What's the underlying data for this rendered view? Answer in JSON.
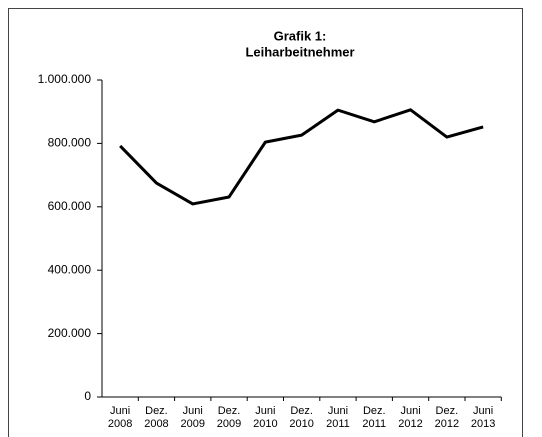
{
  "chart_data": {
    "type": "line",
    "title": [
      "Grafik 1:",
      "Leiharbeitnehmer"
    ],
    "categories": [
      [
        "Juni",
        "2008"
      ],
      [
        "Dez.",
        "2008"
      ],
      [
        "Juni",
        "2009"
      ],
      [
        "Dez.",
        "2009"
      ],
      [
        "Juni",
        "2010"
      ],
      [
        "Dez.",
        "2010"
      ],
      [
        "Juni",
        "2011"
      ],
      [
        "Dez.",
        "2011"
      ],
      [
        "Juni",
        "2012"
      ],
      [
        "Dez.",
        "2012"
      ],
      [
        "Juni",
        "2013"
      ]
    ],
    "values": [
      792000,
      675000,
      609000,
      631000,
      804000,
      826000,
      905000,
      868000,
      906000,
      820000,
      852000
    ],
    "color": "#000000",
    "ylim": [
      0,
      1000000
    ],
    "yticks": [
      0,
      {
        "value": 200000,
        "label": "200.000"
      },
      {
        "value": 400000,
        "label": "400.000"
      },
      {
        "value": 600000,
        "label": "600.000"
      },
      {
        "value": 800000,
        "label": "800.000"
      },
      {
        "value": 1000000,
        "label": "1.000.000"
      }
    ],
    "grid": false
  }
}
